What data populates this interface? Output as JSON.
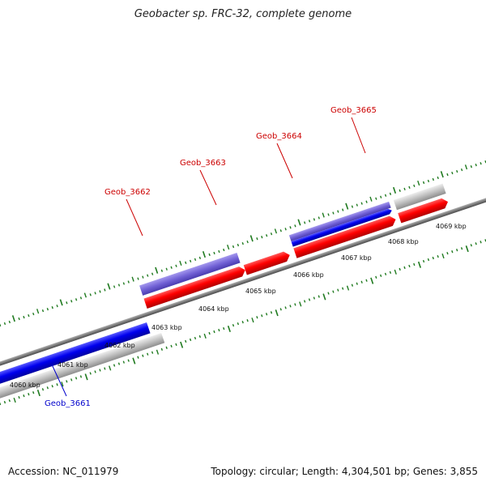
{
  "title": "Geobacter sp. FRC-32, complete genome",
  "footer": {
    "accession": "Accession: NC_011979",
    "summary": "Topology: circular; Length: 4,304,501 bp; Genes: 3,855"
  },
  "colors": {
    "backbone": "#7a7a7a",
    "ticks": "#1f7a1f",
    "forward_cds": "#ff0000",
    "reverse_cds": "#0000ee",
    "reverse_cds_light": "#7060d0",
    "other": "#c0c0c0",
    "label_red": "#cc0000",
    "label_blue": "#0000cc"
  },
  "scale_labels": [
    "4060 kbp",
    "4061 kbp",
    "4062 kbp",
    "4063 kbp",
    "4064 kbp",
    "4065 kbp",
    "4066 kbp",
    "4067 kbp",
    "4068 kbp",
    "4069 kbp"
  ],
  "gene_labels": [
    {
      "text": "Geob_3661",
      "color": "#0000cc"
    },
    {
      "text": "Geob_3662",
      "color": "#cc0000"
    },
    {
      "text": "Geob_3663",
      "color": "#cc0000"
    },
    {
      "text": "Geob_3664",
      "color": "#cc0000"
    },
    {
      "text": "Geob_3665",
      "color": "#cc0000"
    }
  ]
}
